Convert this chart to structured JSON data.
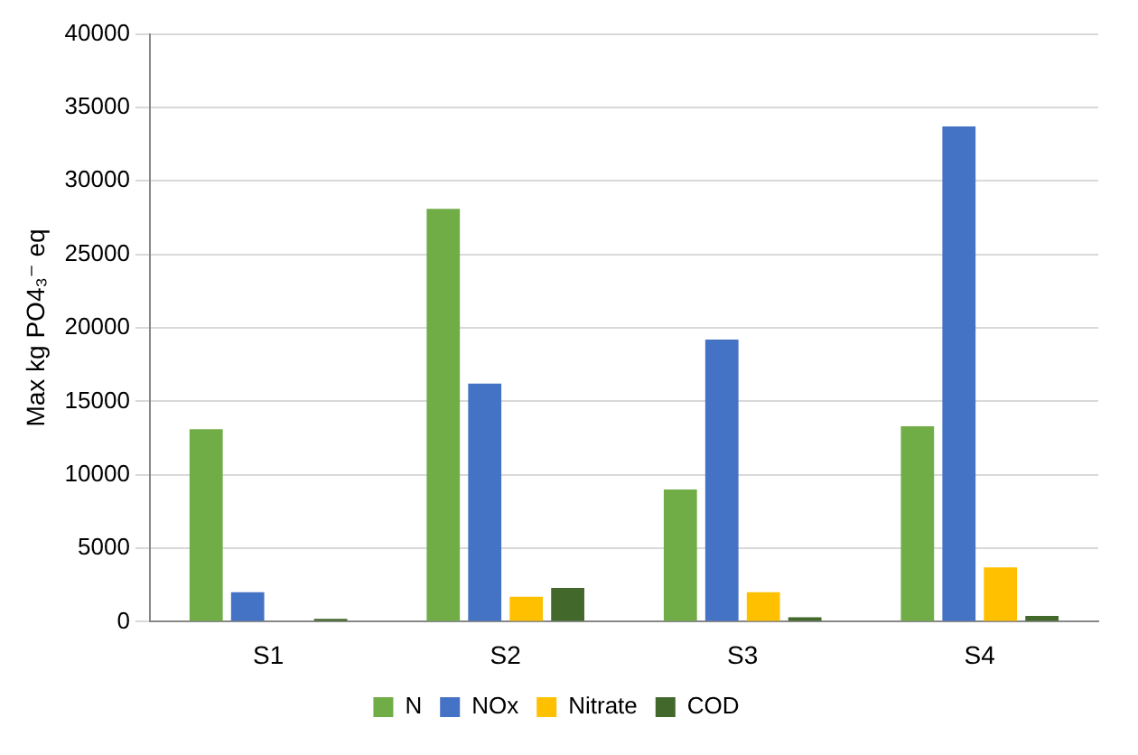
{
  "chart_data": {
    "type": "bar",
    "ylabel": "Max kg PO4₃⁻ eq",
    "categories": [
      "S1",
      "S2",
      "S3",
      "S4"
    ],
    "series": [
      {
        "name": "N",
        "color": "#70ad47",
        "values": [
          13100,
          28100,
          9000,
          13300
        ]
      },
      {
        "name": "NOx",
        "color": "#4472c4",
        "values": [
          2000,
          16200,
          19200,
          33700
        ]
      },
      {
        "name": "Nitrate",
        "color": "#ffc000",
        "values": [
          null,
          1700,
          2000,
          3700
        ]
      },
      {
        "name": "COD",
        "color": "#43682b",
        "values": [
          200,
          2300,
          300,
          400
        ]
      }
    ],
    "ylim": [
      0,
      40000
    ],
    "yticks": [
      0,
      5000,
      10000,
      15000,
      20000,
      25000,
      30000,
      35000,
      40000
    ],
    "grid": "y",
    "legend": "bottom"
  }
}
